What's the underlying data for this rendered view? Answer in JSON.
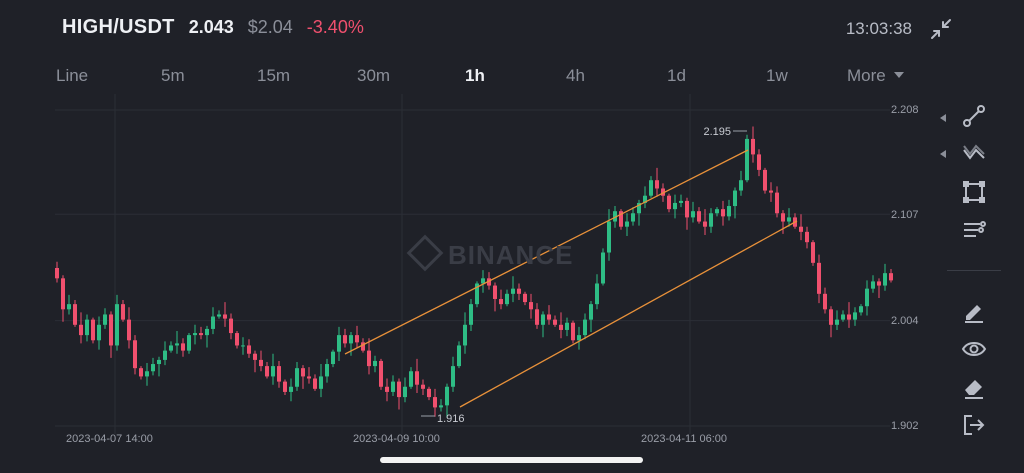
{
  "header": {
    "pair": "HIGH/USDT",
    "last_price": "2.043",
    "usd_price": "$2.04",
    "change": "-3.40%",
    "time": "13:03:38"
  },
  "tabs": [
    {
      "label": "Line",
      "active": false
    },
    {
      "label": "5m",
      "active": false
    },
    {
      "label": "15m",
      "active": false
    },
    {
      "label": "30m",
      "active": false
    },
    {
      "label": "1h",
      "active": true
    },
    {
      "label": "4h",
      "active": false
    },
    {
      "label": "1d",
      "active": false
    },
    {
      "label": "1w",
      "active": false
    },
    {
      "label": "More",
      "active": false
    }
  ],
  "watermark": "BINANCE",
  "tools": [
    "trendline-icon",
    "zigzag-icon",
    "rectangle-icon",
    "fib-lines-icon",
    "pencil-icon",
    "eye-icon",
    "eraser-icon",
    "exit-icon"
  ],
  "colors": {
    "up": "#2ebd85",
    "down": "#f0506e",
    "channel": "#e8913a",
    "grid": "#2b2e36"
  },
  "chart_data": {
    "type": "candlestick",
    "pair": "HIGH/USDT",
    "interval": "1h",
    "y_ticks": [
      2.208,
      2.107,
      2.004,
      1.902
    ],
    "ylim": [
      1.902,
      2.208
    ],
    "x_ticks": [
      "2023-04-07 14:00",
      "2023-04-09 10:00",
      "2023-04-11 06:00"
    ],
    "annotations": {
      "high": "2.195",
      "low": "1.916"
    },
    "closes": [
      2.045,
      2.015,
      2.02,
      2.0,
      1.99,
      2.005,
      1.985,
      2.0,
      2.01,
      1.98,
      2.02,
      2.005,
      1.985,
      1.958,
      1.95,
      1.955,
      1.962,
      1.966,
      1.975,
      1.98,
      1.982,
      1.975,
      1.99,
      1.992,
      1.99,
      1.996,
      2.008,
      2.01,
      2.006,
      1.992,
      1.98,
      1.98,
      1.972,
      1.966,
      1.96,
      1.95,
      1.96,
      1.945,
      1.935,
      1.94,
      1.958,
      1.95,
      1.948,
      1.938,
      1.95,
      1.962,
      1.974,
      1.99,
      1.982,
      1.99,
      1.983,
      1.975,
      1.96,
      1.965,
      1.94,
      1.935,
      1.945,
      1.93,
      1.94,
      1.955,
      1.942,
      1.938,
      1.93,
      1.92,
      1.922,
      1.94,
      1.96,
      1.98,
      2.0,
      2.02,
      2.04,
      2.045,
      2.038,
      2.025,
      2.02,
      2.03,
      2.035,
      2.03,
      2.022,
      2.015,
      2.0,
      2.01,
      2.005,
      2.0,
      1.995,
      2.002,
      1.985,
      1.99,
      2.005,
      2.02,
      2.04,
      2.07,
      2.1,
      2.11,
      2.095,
      2.1,
      2.108,
      2.118,
      2.125,
      2.14,
      2.132,
      2.125,
      2.112,
      2.118,
      2.12,
      2.104,
      2.11,
      2.1,
      2.095,
      2.108,
      2.112,
      2.105,
      2.115,
      2.13,
      2.14,
      2.18,
      2.165,
      2.15,
      2.13,
      2.128,
      2.108,
      2.1,
      2.104,
      2.095,
      2.09,
      2.08,
      2.06,
      2.03,
      2.015,
      2.0,
      2.005,
      2.01,
      2.005,
      2.012,
      2.018,
      2.035,
      2.042,
      2.038,
      2.05,
      2.043
    ]
  }
}
